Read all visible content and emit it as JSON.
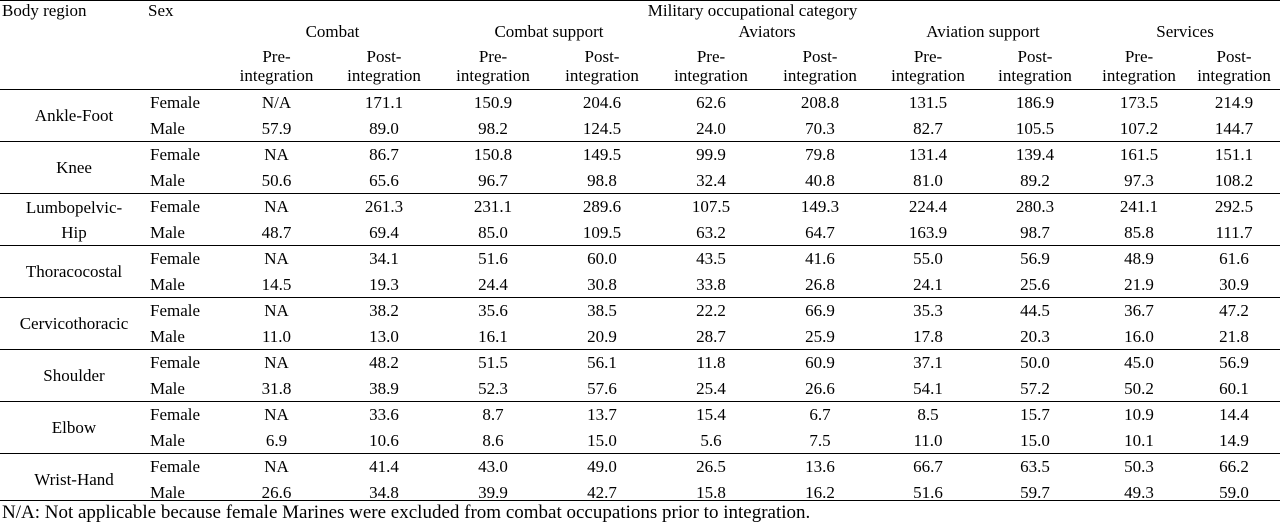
{
  "headers": {
    "body_region": "Body region",
    "sex": "Sex",
    "category": "Military occupational category",
    "groups": [
      "Combat",
      "Combat support",
      "Aviators",
      "Aviation support",
      "Services"
    ],
    "pre": [
      "Pre-",
      "integration"
    ],
    "post": [
      "Post-",
      "integration"
    ]
  },
  "rows": [
    {
      "region": "Ankle-Foot",
      "female": [
        "N/A",
        "171.1",
        "150.9",
        "204.6",
        "62.6",
        "208.8",
        "131.5",
        "186.9",
        "173.5",
        "214.9"
      ],
      "male": [
        "57.9",
        "89.0",
        "98.2",
        "124.5",
        "24.0",
        "70.3",
        "82.7",
        "105.5",
        "107.2",
        "144.7"
      ]
    },
    {
      "region": "Knee",
      "female": [
        "NA",
        "86.7",
        "150.8",
        "149.5",
        "99.9",
        "79.8",
        "131.4",
        "139.4",
        "161.5",
        "151.1"
      ],
      "male": [
        "50.6",
        "65.6",
        "96.7",
        "98.8",
        "32.4",
        "40.8",
        "81.0",
        "89.2",
        "97.3",
        "108.2"
      ]
    },
    {
      "region": "Lumbopelvic-Hip",
      "female": [
        "NA",
        "261.3",
        "231.1",
        "289.6",
        "107.5",
        "149.3",
        "224.4",
        "280.3",
        "241.1",
        "292.5"
      ],
      "male": [
        "48.7",
        "69.4",
        "85.0",
        "109.5",
        "63.2",
        "64.7",
        "163.9",
        "98.7",
        "85.8",
        "111.7"
      ]
    },
    {
      "region": "Thoracocostal",
      "female": [
        "NA",
        "34.1",
        "51.6",
        "60.0",
        "43.5",
        "41.6",
        "55.0",
        "56.9",
        "48.9",
        "61.6"
      ],
      "male": [
        "14.5",
        "19.3",
        "24.4",
        "30.8",
        "33.8",
        "26.8",
        "24.1",
        "25.6",
        "21.9",
        "30.9"
      ]
    },
    {
      "region": "Cervicothoracic",
      "female": [
        "NA",
        "38.2",
        "35.6",
        "38.5",
        "22.2",
        "66.9",
        "35.3",
        "44.5",
        "36.7",
        "47.2"
      ],
      "male": [
        "11.0",
        "13.0",
        "16.1",
        "20.9",
        "28.7",
        "25.9",
        "17.8",
        "20.3",
        "16.0",
        "21.8"
      ]
    },
    {
      "region": "Shoulder",
      "female": [
        "NA",
        "48.2",
        "51.5",
        "56.1",
        "11.8",
        "60.9",
        "37.1",
        "50.0",
        "45.0",
        "56.9"
      ],
      "male": [
        "31.8",
        "38.9",
        "52.3",
        "57.6",
        "25.4",
        "26.6",
        "54.1",
        "57.2",
        "50.2",
        "60.1"
      ]
    },
    {
      "region": "Elbow",
      "female": [
        "NA",
        "33.6",
        "8.7",
        "13.7",
        "15.4",
        "6.7",
        "8.5",
        "15.7",
        "10.9",
        "14.4"
      ],
      "male": [
        "6.9",
        "10.6",
        "8.6",
        "15.0",
        "5.6",
        "7.5",
        "11.0",
        "15.0",
        "10.1",
        "14.9"
      ]
    },
    {
      "region": "Wrist-Hand",
      "female": [
        "NA",
        "41.4",
        "43.0",
        "49.0",
        "26.5",
        "13.6",
        "66.7",
        "63.5",
        "50.3",
        "66.2"
      ],
      "male": [
        "26.6",
        "34.8",
        "39.9",
        "42.7",
        "15.8",
        "16.2",
        "51.6",
        "59.7",
        "49.3",
        "59.0"
      ]
    }
  ],
  "sex_labels": {
    "female": "Female",
    "male": "Male"
  },
  "footnote": "N/A: Not applicable because female Marines were excluded from combat occupations prior to integration."
}
